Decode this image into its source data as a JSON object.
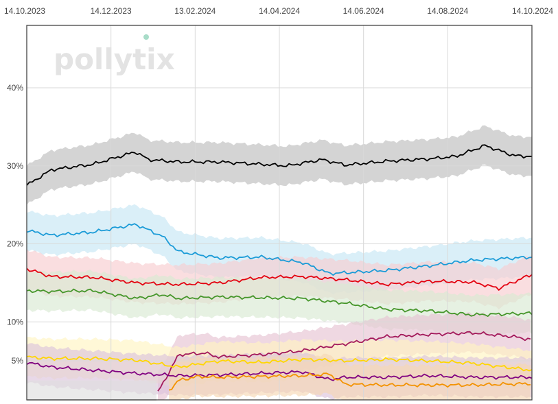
{
  "logo": {
    "text": "pollytix",
    "dot_color": "#a8dcc8"
  },
  "chart_data": {
    "type": "line",
    "title": "",
    "xlabel": "",
    "ylabel": "",
    "x_range": [
      "2023-10-14",
      "2024-10-14"
    ],
    "x_ticks": [
      "14.10.2023",
      "14.12.2023",
      "13.02.2024",
      "14.04.2024",
      "14.06.2024",
      "14.08.2024",
      "14.10.2024"
    ],
    "y_ticks": [
      "5%",
      "10%",
      "20%",
      "30%",
      "40%"
    ],
    "y_tick_values": [
      5,
      10,
      20,
      30,
      40
    ],
    "ylim": [
      0,
      48
    ],
    "grid": true,
    "band_width": 2.5,
    "series": [
      {
        "color": "#000000",
        "band_color": "#bdbdbd",
        "x": [
          "2023-10-14",
          "2023-11-01",
          "2023-12-01",
          "2024-01-01",
          "2024-01-10",
          "2024-02-01",
          "2024-03-01",
          "2024-04-01",
          "2024-04-20",
          "2024-05-15",
          "2024-06-01",
          "2024-07-01",
          "2024-08-01",
          "2024-08-20",
          "2024-09-10",
          "2024-10-01",
          "2024-10-14"
        ],
        "y": [
          27.5,
          29.5,
          30.2,
          31.8,
          30.8,
          30.5,
          30.5,
          30.2,
          30.0,
          30.8,
          30.1,
          30.6,
          30.9,
          31.2,
          32.6,
          31.3,
          31.2
        ]
      },
      {
        "color": "#1b9bd7",
        "band_color": "#c6e6f5",
        "x": [
          "2023-10-14",
          "2023-11-01",
          "2023-12-01",
          "2024-01-01",
          "2024-01-20",
          "2024-02-01",
          "2024-03-01",
          "2024-04-01",
          "2024-05-01",
          "2024-05-20",
          "2024-06-01",
          "2024-07-01",
          "2024-08-01",
          "2024-09-01",
          "2024-10-14"
        ],
        "y": [
          21.7,
          21.1,
          21.5,
          22.5,
          21.0,
          19.0,
          18.2,
          18.3,
          17.6,
          16.2,
          16.3,
          16.6,
          17.2,
          17.9,
          18.3
        ]
      },
      {
        "color": "#e3000f",
        "band_color": "#f7cdd0",
        "x": [
          "2023-10-14",
          "2023-11-01",
          "2023-12-01",
          "2024-01-01",
          "2024-02-01",
          "2024-03-01",
          "2024-04-01",
          "2024-05-01",
          "2024-06-01",
          "2024-07-01",
          "2024-08-01",
          "2024-09-01",
          "2024-09-20",
          "2024-10-14"
        ],
        "y": [
          16.8,
          15.8,
          15.7,
          15.0,
          14.8,
          15.0,
          15.7,
          15.8,
          15.4,
          14.8,
          15.2,
          15.1,
          14.3,
          16.1
        ]
      },
      {
        "color": "#46962b",
        "band_color": "#d9ead2",
        "x": [
          "2023-10-14",
          "2023-11-01",
          "2023-12-01",
          "2024-01-01",
          "2024-01-20",
          "2024-02-01",
          "2024-03-01",
          "2024-04-01",
          "2024-05-01",
          "2024-06-01",
          "2024-07-01",
          "2024-08-01",
          "2024-09-01",
          "2024-10-14"
        ],
        "y": [
          14.0,
          13.9,
          14.0,
          13.0,
          13.5,
          13.0,
          13.2,
          13.1,
          13.0,
          12.4,
          11.6,
          11.4,
          10.9,
          11.1
        ]
      },
      {
        "color": "#a3195b",
        "band_color": "#e6c3d3",
        "x": [
          "2024-01-17",
          "2024-01-25",
          "2024-02-01",
          "2024-02-20",
          "2024-03-01",
          "2024-04-01",
          "2024-05-01",
          "2024-06-01",
          "2024-07-01",
          "2024-08-01",
          "2024-09-01",
          "2024-10-01",
          "2024-10-14"
        ],
        "y": [
          1.0,
          3.5,
          5.8,
          6.0,
          5.5,
          5.8,
          6.3,
          7.2,
          8.1,
          8.4,
          8.6,
          8.1,
          7.7
        ]
      },
      {
        "color": "#ffd600",
        "band_color": "#fff4c2",
        "x": [
          "2023-10-14",
          "2023-11-01",
          "2023-12-01",
          "2024-01-01",
          "2024-02-01",
          "2024-03-01",
          "2024-04-01",
          "2024-05-01",
          "2024-06-01",
          "2024-07-01",
          "2024-08-01",
          "2024-09-01",
          "2024-10-14"
        ],
        "y": [
          5.5,
          5.3,
          5.3,
          5.1,
          4.2,
          5.0,
          4.8,
          5.2,
          5.0,
          5.2,
          5.0,
          4.7,
          3.8
        ]
      },
      {
        "color": "#800080",
        "band_color": "#dcc3dc",
        "x": [
          "2023-10-14",
          "2023-11-01",
          "2023-12-01",
          "2024-01-01",
          "2024-02-01",
          "2024-03-01",
          "2024-04-01",
          "2024-05-01",
          "2024-05-20",
          "2024-06-01",
          "2024-07-01",
          "2024-08-01",
          "2024-09-01",
          "2024-10-14"
        ],
        "y": [
          4.8,
          4.2,
          3.8,
          3.4,
          3.1,
          3.2,
          3.4,
          3.6,
          2.6,
          2.9,
          2.9,
          3.1,
          2.9,
          2.9
        ]
      },
      {
        "color": "#f39200",
        "band_color": "#f6d7b4",
        "x": [
          "2024-01-25",
          "2024-02-01",
          "2024-02-15",
          "2024-03-01",
          "2024-04-01",
          "2024-05-01",
          "2024-05-20",
          "2024-06-01",
          "2024-07-01",
          "2024-08-01",
          "2024-09-01",
          "2024-10-14"
        ],
        "y": [
          1.2,
          2.5,
          3.0,
          2.9,
          3.0,
          3.1,
          3.3,
          2.0,
          1.9,
          1.9,
          1.9,
          2.1
        ]
      },
      {
        "color": "#bbbbbb",
        "band_color": "#dedede",
        "x": [
          "2023-10-14",
          "2024-01-17"
        ],
        "y": [
          0.0,
          0.0
        ]
      }
    ]
  }
}
